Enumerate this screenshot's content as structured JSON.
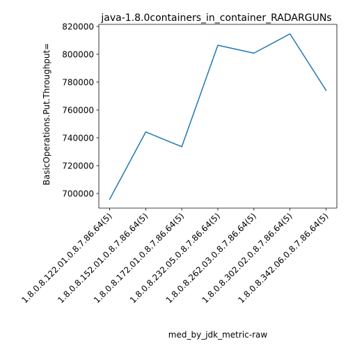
{
  "chart_data": {
    "type": "line",
    "title": "java-1.8.0containers_in_container_RADARGUNs",
    "xlabel": "med_by_jdk_metric-raw",
    "ylabel": "BasicOperations.Put.Throughput=",
    "categories": [
      "1.8.0.8.122.01.0.8.7.86.64(5)",
      "1.8.0.8.152.01.0.8.7.86.64(5)",
      "1.8.0.8.172.01.0.8.7.86.64(5)",
      "1.8.0.8.232.05.0.8.7.86.64(5)",
      "1.8.0.8.262.03.0.8.7.86.64(5)",
      "1.8.0.8.302.02.0.8.7.86.64(5)",
      "1.8.0.8.342.06.0.8.7.86.64(5)"
    ],
    "series": [
      {
        "values": [
          695800,
          744200,
          733600,
          806500,
          800800,
          814700,
          774100
        ],
        "color": "#1f77b4"
      }
    ],
    "ylim": [
      689500,
      821500
    ],
    "yticks": [
      700000,
      720000,
      740000,
      760000,
      780000,
      800000,
      820000
    ],
    "ytick_labels": [
      "700000",
      "720000",
      "740000",
      "760000",
      "780000",
      "800000",
      "820000"
    ],
    "grid": false,
    "legend": "none"
  }
}
